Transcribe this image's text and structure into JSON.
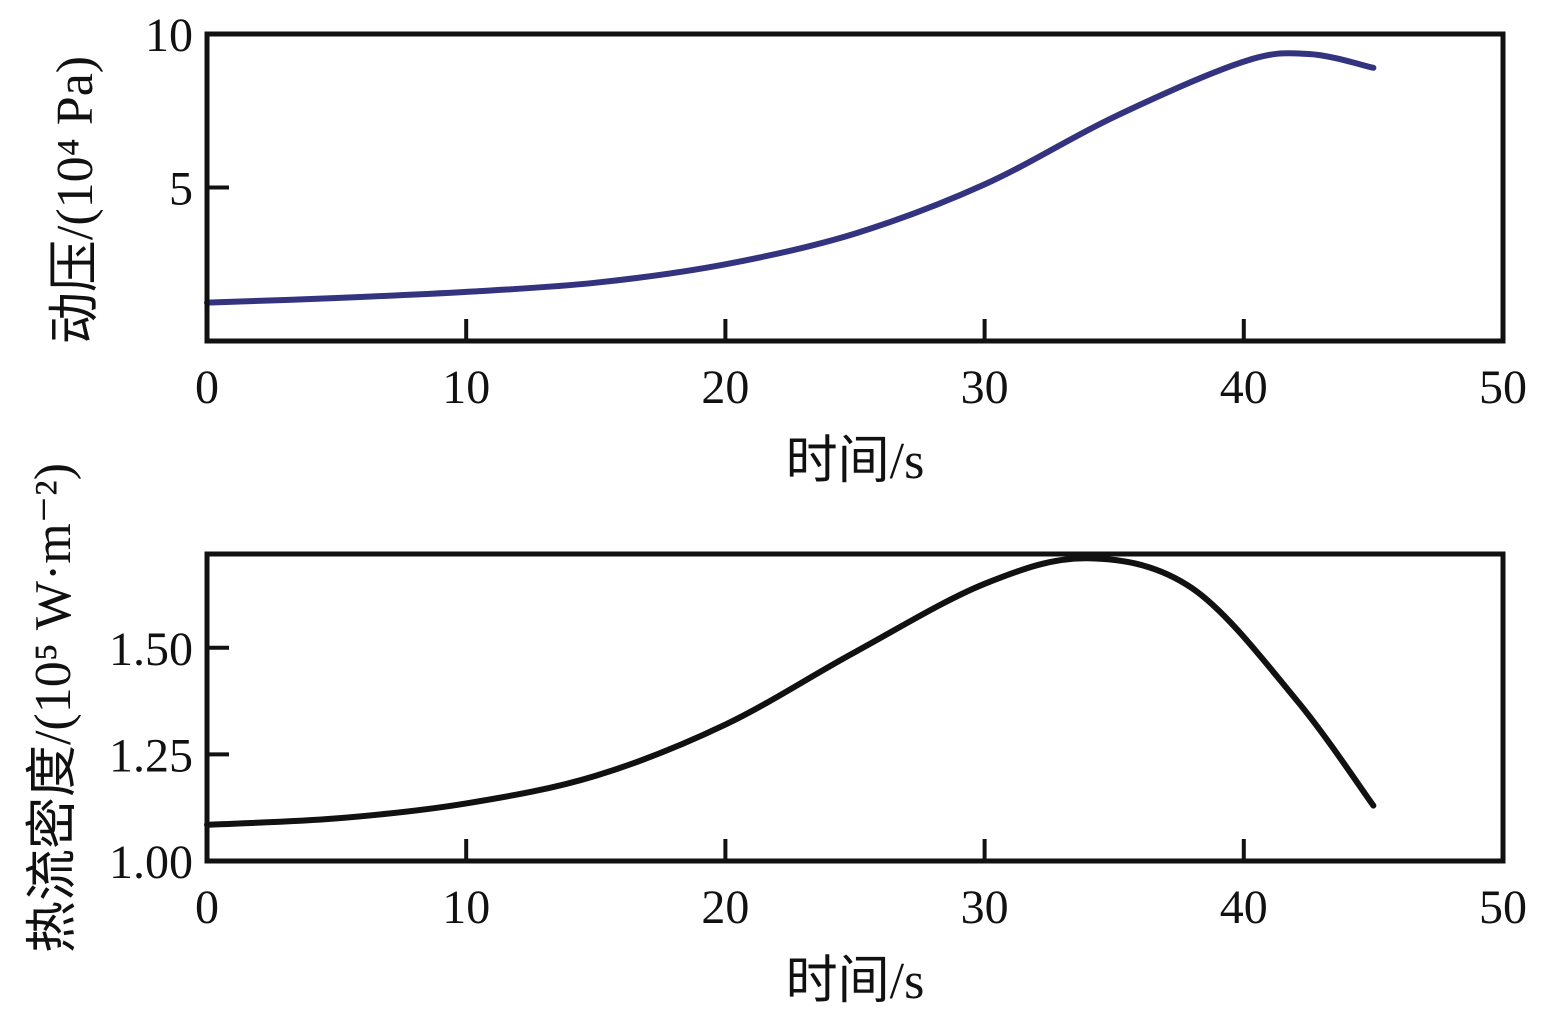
{
  "chart_data": [
    {
      "type": "line",
      "xlabel": "时间/s",
      "ylabel": "动压/(10⁴ Pa)",
      "xlim": [
        0,
        50
      ],
      "ylim": [
        0,
        10
      ],
      "xticks": [
        "0",
        "10",
        "20",
        "30",
        "40",
        "50"
      ],
      "yticks": [
        "5",
        "10"
      ],
      "grid": false,
      "series": [
        {
          "color": "#343380",
          "x": [
            0,
            5,
            10,
            15,
            20,
            25,
            30,
            35,
            40,
            42.5,
            45
          ],
          "y": [
            1.25,
            1.4,
            1.6,
            1.9,
            2.5,
            3.5,
            5.1,
            7.3,
            9.1,
            9.35,
            8.9
          ]
        }
      ]
    },
    {
      "type": "line",
      "xlabel": "时间/s",
      "ylabel": "热流密度/(10⁵ W·m⁻²)",
      "xlim": [
        0,
        50
      ],
      "ylim": [
        1.0,
        1.72
      ],
      "xticks": [
        "0",
        "10",
        "20",
        "30",
        "40",
        "50"
      ],
      "yticks": [
        "1.00",
        "1.25",
        "1.50"
      ],
      "grid": false,
      "series": [
        {
          "color": "#111111",
          "x": [
            0,
            5,
            10,
            15,
            20,
            25,
            30,
            34,
            38,
            42,
            45
          ],
          "y": [
            1.085,
            1.1,
            1.135,
            1.2,
            1.32,
            1.49,
            1.65,
            1.71,
            1.64,
            1.38,
            1.13
          ]
        }
      ]
    }
  ]
}
